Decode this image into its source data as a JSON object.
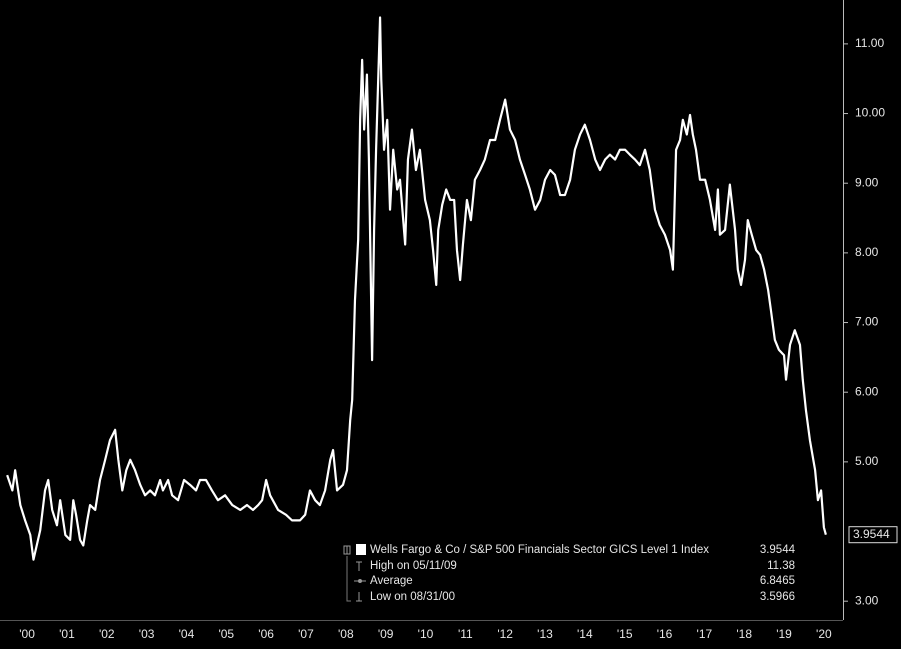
{
  "chart_data": {
    "type": "line",
    "xlim": [
      1999.82,
      2020.98
    ],
    "ylim": [
      2.73,
      11.63
    ],
    "xticks": [
      {
        "value": 2000.5,
        "label": "'00"
      },
      {
        "value": 2001.5,
        "label": "'01"
      },
      {
        "value": 2002.5,
        "label": "'02"
      },
      {
        "value": 2003.5,
        "label": "'03"
      },
      {
        "value": 2004.5,
        "label": "'04"
      },
      {
        "value": 2005.5,
        "label": "'05"
      },
      {
        "value": 2006.5,
        "label": "'06"
      },
      {
        "value": 2007.5,
        "label": "'07"
      },
      {
        "value": 2008.5,
        "label": "'08"
      },
      {
        "value": 2009.5,
        "label": "'09"
      },
      {
        "value": 2010.5,
        "label": "'10"
      },
      {
        "value": 2011.5,
        "label": "'11"
      },
      {
        "value": 2012.5,
        "label": "'12"
      },
      {
        "value": 2013.5,
        "label": "'13"
      },
      {
        "value": 2014.5,
        "label": "'14"
      },
      {
        "value": 2015.5,
        "label": "'15"
      },
      {
        "value": 2016.5,
        "label": "'16"
      },
      {
        "value": 2017.5,
        "label": "'17"
      },
      {
        "value": 2018.5,
        "label": "'18"
      },
      {
        "value": 2019.5,
        "label": "'19"
      },
      {
        "value": 2020.5,
        "label": "'20"
      }
    ],
    "yticks": [
      {
        "value": 3,
        "label": "3.00"
      },
      {
        "value": 5,
        "label": "5.00"
      },
      {
        "value": 6,
        "label": "6.00"
      },
      {
        "value": 7,
        "label": "7.00"
      },
      {
        "value": 8,
        "label": "8.00"
      },
      {
        "value": 9,
        "label": "9.00"
      },
      {
        "value": 10,
        "label": "10.00"
      },
      {
        "value": 11,
        "label": "11.00"
      }
    ],
    "grid": false,
    "series": [
      {
        "name": "Wells Fargo & Co / S&P 500 Financials Sector GICS Level 1 Index",
        "color": "#ffffff",
        "x": [
          2000.0,
          2000.13,
          2000.2,
          2000.33,
          2000.45,
          2000.58,
          2000.66,
          2000.83,
          2000.95,
          2001.03,
          2001.13,
          2001.25,
          2001.33,
          2001.46,
          2001.58,
          2001.66,
          2001.73,
          2001.83,
          2001.91,
          2002.01,
          2002.08,
          2002.21,
          2002.33,
          2002.46,
          2002.58,
          2002.71,
          2002.79,
          2002.89,
          2002.99,
          2003.09,
          2003.21,
          2003.34,
          2003.46,
          2003.59,
          2003.71,
          2003.84,
          2003.91,
          2004.04,
          2004.14,
          2004.29,
          2004.44,
          2004.59,
          2004.74,
          2004.84,
          2004.99,
          2005.14,
          2005.29,
          2005.47,
          2005.65,
          2005.85,
          2006.02,
          2006.17,
          2006.3,
          2006.4,
          2006.5,
          2006.6,
          2006.8,
          2007.0,
          2007.15,
          2007.35,
          2007.48,
          2007.6,
          2007.73,
          2007.85,
          2007.98,
          2008.11,
          2008.18,
          2008.28,
          2008.43,
          2008.53,
          2008.61,
          2008.66,
          2008.73,
          2008.81,
          2008.86,
          2008.91,
          2008.96,
          2009.03,
          2009.08,
          2009.16,
          2009.21,
          2009.26,
          2009.36,
          2009.39,
          2009.46,
          2009.54,
          2009.61,
          2009.69,
          2009.79,
          2009.86,
          2009.99,
          2010.06,
          2010.16,
          2010.26,
          2010.36,
          2010.49,
          2010.61,
          2010.69,
          2010.77,
          2010.82,
          2010.92,
          2011.02,
          2011.12,
          2011.22,
          2011.29,
          2011.37,
          2011.44,
          2011.54,
          2011.64,
          2011.74,
          2011.87,
          2011.99,
          2012.12,
          2012.25,
          2012.37,
          2012.5,
          2012.62,
          2012.75,
          2012.87,
          2013.0,
          2013.12,
          2013.25,
          2013.38,
          2013.5,
          2013.63,
          2013.75,
          2013.88,
          2014.0,
          2014.13,
          2014.25,
          2014.38,
          2014.5,
          2014.63,
          2014.76,
          2014.88,
          2015.01,
          2015.13,
          2015.26,
          2015.38,
          2015.51,
          2015.63,
          2015.76,
          2015.88,
          2016.01,
          2016.13,
          2016.26,
          2016.38,
          2016.51,
          2016.64,
          2016.71,
          2016.79,
          2016.89,
          2016.96,
          2017.06,
          2017.14,
          2017.21,
          2017.29,
          2017.39,
          2017.52,
          2017.64,
          2017.77,
          2017.84,
          2017.89,
          2018.02,
          2018.14,
          2018.27,
          2018.34,
          2018.42,
          2018.52,
          2018.59,
          2018.69,
          2018.8,
          2018.9,
          2019.0,
          2019.1,
          2019.17,
          2019.27,
          2019.37,
          2019.5,
          2019.55,
          2019.65,
          2019.77,
          2019.9,
          2019.97,
          2020.05,
          2020.15,
          2020.28,
          2020.35,
          2020.43,
          2020.5,
          2020.55
        ],
        "values": [
          4.81,
          4.59,
          4.88,
          4.38,
          4.16,
          3.95,
          3.5966,
          4.02,
          4.59,
          4.74,
          4.31,
          4.09,
          4.45,
          3.95,
          3.88,
          4.45,
          4.24,
          3.88,
          3.8,
          4.16,
          4.38,
          4.31,
          4.74,
          5.03,
          5.31,
          5.46,
          5.03,
          4.59,
          4.88,
          5.03,
          4.88,
          4.67,
          4.52,
          4.59,
          4.52,
          4.74,
          4.59,
          4.74,
          4.52,
          4.45,
          4.74,
          4.67,
          4.59,
          4.74,
          4.74,
          4.59,
          4.45,
          4.52,
          4.38,
          4.31,
          4.38,
          4.31,
          4.38,
          4.45,
          4.74,
          4.52,
          4.31,
          4.24,
          4.16,
          4.16,
          4.24,
          4.59,
          4.45,
          4.38,
          4.59,
          5.03,
          5.17,
          4.59,
          4.67,
          4.88,
          5.6,
          5.89,
          7.32,
          8.19,
          9.91,
          10.77,
          9.77,
          10.56,
          9.34,
          6.46,
          8.33,
          9.48,
          11.38,
          10.49,
          9.48,
          9.91,
          8.62,
          9.48,
          8.91,
          9.05,
          8.12,
          9.34,
          9.77,
          9.19,
          9.48,
          8.76,
          8.47,
          8.04,
          7.54,
          8.33,
          8.69,
          8.91,
          8.76,
          8.76,
          8.04,
          7.61,
          8.12,
          8.76,
          8.47,
          9.05,
          9.19,
          9.34,
          9.62,
          9.62,
          9.91,
          10.2,
          9.77,
          9.62,
          9.34,
          9.12,
          8.91,
          8.62,
          8.76,
          9.05,
          9.19,
          9.12,
          8.83,
          8.83,
          9.05,
          9.48,
          9.7,
          9.84,
          9.62,
          9.34,
          9.19,
          9.34,
          9.41,
          9.34,
          9.48,
          9.48,
          9.41,
          9.34,
          9.26,
          9.48,
          9.19,
          8.62,
          8.4,
          8.26,
          8.04,
          7.76,
          9.48,
          9.62,
          9.91,
          9.7,
          9.98,
          9.7,
          9.48,
          9.05,
          9.05,
          8.76,
          8.33,
          8.91,
          8.26,
          8.33,
          8.98,
          8.33,
          7.76,
          7.54,
          7.9,
          8.47,
          8.26,
          8.04,
          7.97,
          7.76,
          7.47,
          7.18,
          6.75,
          6.61,
          6.53,
          6.18,
          6.68,
          6.89,
          6.68,
          6.18,
          5.74,
          5.31,
          4.88,
          4.45,
          4.59,
          4.06,
          3.9544
        ]
      }
    ],
    "stats": [
      {
        "label": "High on 05/11/09",
        "value": 11.38
      },
      {
        "label": "Average",
        "value": 6.8465
      },
      {
        "label": "Low on 08/31/00",
        "value": 3.5966
      }
    ]
  }
}
